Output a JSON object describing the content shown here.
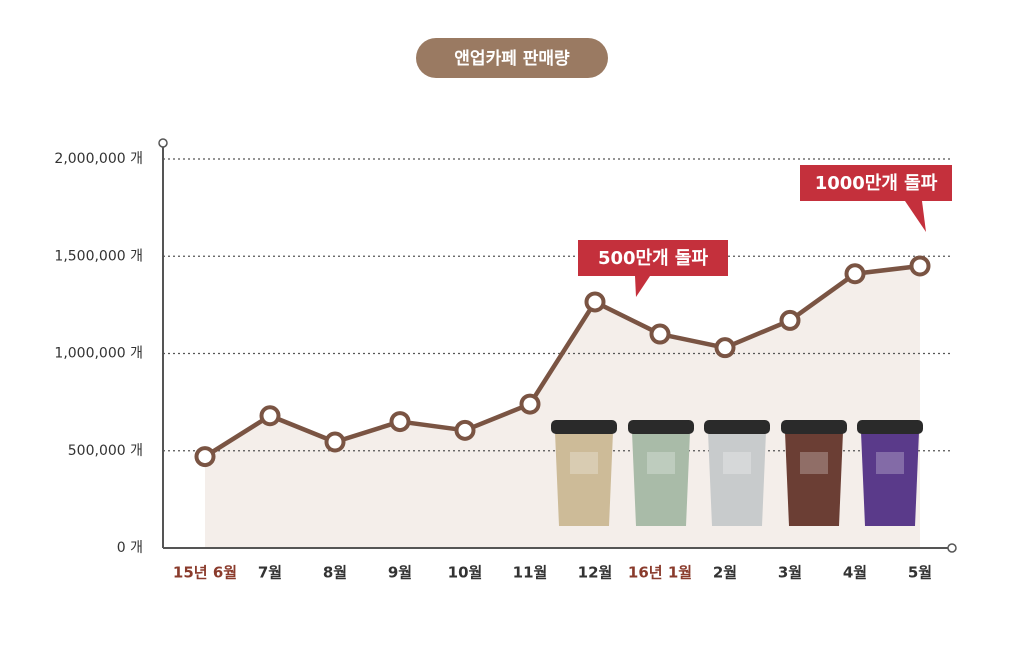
{
  "chart_data": {
    "type": "line",
    "title": "앤업카페 판매량",
    "categories": [
      "15년 6월",
      "7월",
      "8월",
      "9월",
      "10월",
      "11월",
      "12월",
      "16년 1월",
      "2월",
      "3월",
      "4월",
      "5월"
    ],
    "category_colors": [
      "#8a3b2c",
      "#333333",
      "#333333",
      "#333333",
      "#333333",
      "#333333",
      "#333333",
      "#8a3b2c",
      "#333333",
      "#333333",
      "#333333",
      "#333333"
    ],
    "series": [
      {
        "name": "판매량",
        "color": "#7a5443",
        "values": [
          470000,
          680000,
          545000,
          650000,
          605000,
          740000,
          1265000,
          1100000,
          1030000,
          1170000,
          1410000,
          1450000
        ]
      }
    ],
    "ylim": [
      0,
      2000000
    ],
    "yticks": [
      {
        "value": 0,
        "label": "0 개"
      },
      {
        "value": 500000,
        "label": "500,000 개"
      },
      {
        "value": 1000000,
        "label": "1,000,000 개"
      },
      {
        "value": 1500000,
        "label": "1,500,000 개"
      },
      {
        "value": 2000000,
        "label": "2,000,000 개"
      }
    ],
    "grid": true,
    "area_color": "#f4eeea",
    "annotations": [
      "500만개 돌파",
      "1000만개 돌파"
    ]
  }
}
